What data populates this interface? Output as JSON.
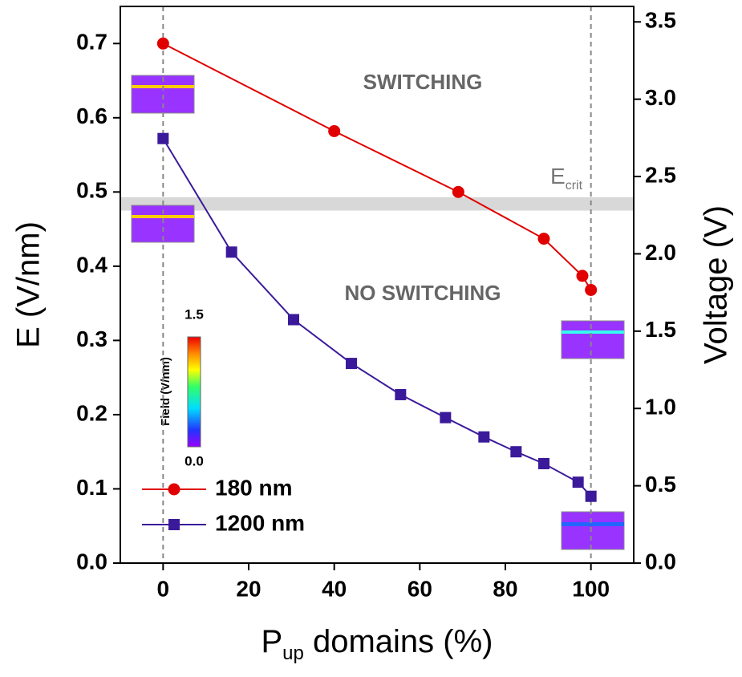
{
  "chart_data": {
    "type": "line",
    "xlabel": {
      "main": "P",
      "sub": "up",
      "rest": " domains (%)"
    },
    "ylabel": "E (V/nm)",
    "y2label": "Voltage (V)",
    "xlim": [
      -10,
      110
    ],
    "ylim": [
      0,
      0.75
    ],
    "y2lim": [
      0,
      3.6
    ],
    "xticks": [
      0,
      20,
      40,
      60,
      80,
      100
    ],
    "yticks": [
      {
        "value": 0,
        "label": "0.0"
      },
      0.1,
      0.2,
      0.3,
      0.4,
      0.5,
      0.6,
      0.7
    ],
    "y2ticks": [
      {
        "value": 0,
        "label": "0.0"
      },
      0.5,
      {
        "value": 1,
        "label": "1.0"
      },
      1.5,
      {
        "value": 2,
        "label": "2.0"
      },
      2.5,
      {
        "value": 3,
        "label": "3.0"
      },
      3.5
    ],
    "series": [
      {
        "name": "180 nm",
        "color": "#e00000",
        "marker": "circle",
        "x": [
          0,
          40,
          69,
          89,
          98,
          100
        ],
        "values": [
          0.7,
          0.582,
          0.5,
          0.437,
          0.387,
          0.368
        ]
      },
      {
        "name": "1200 nm",
        "color": "#3a1a9a",
        "marker": "square",
        "x": [
          0,
          16,
          30.5,
          44,
          55.5,
          66,
          75,
          82.5,
          89,
          97,
          100
        ],
        "values": [
          0.572,
          0.419,
          0.328,
          0.269,
          0.227,
          0.196,
          0.17,
          0.15,
          0.134,
          0.109,
          0.09
        ]
      }
    ],
    "ecrit_band": [
      0.475,
      0.493
    ],
    "ecrit_label": {
      "main": "E",
      "sub": "crit"
    },
    "vlines": [
      0,
      100
    ],
    "annotations": [
      "SWITCHING",
      "NO SWITCHING"
    ],
    "colorbar": {
      "label": "Field (V/nm)",
      "ticks": [
        {
          "value": 0,
          "label": "0.0"
        },
        1.5
      ]
    }
  }
}
